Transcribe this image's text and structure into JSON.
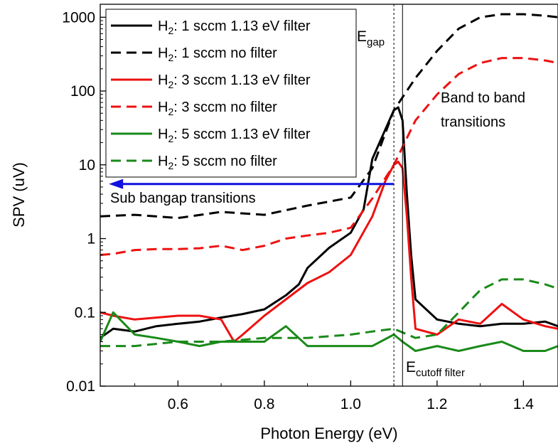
{
  "chart_data": {
    "type": "line",
    "title": "",
    "xlabel": "Photon Energy (eV)",
    "ylabel": "SPV (uV)",
    "xlim": [
      0.42,
      1.48
    ],
    "ylim": [
      0.01,
      1500
    ],
    "yscale": "log",
    "grid": false,
    "legend_position": "top-left",
    "x_ticks": [
      0.6,
      0.8,
      1.0,
      1.2,
      1.4
    ],
    "x_tick_labels": [
      "0.6",
      "0.8",
      "1.0",
      "1.2",
      "1.4"
    ],
    "y_ticks": [
      0.01,
      0.1,
      1,
      10,
      100,
      1000
    ],
    "y_tick_labels": [
      "0.01",
      "0.1",
      "1",
      "10",
      "100",
      "1000"
    ],
    "series": [
      {
        "name": "H2: 1 sccm 1.13 eV filter",
        "legend_main": "H",
        "legend_sub": "2",
        "legend_rest": ": 1 sccm 1.13 eV filter",
        "color": "#000000",
        "dash": "solid",
        "x": [
          0.42,
          0.45,
          0.5,
          0.55,
          0.6,
          0.65,
          0.7,
          0.75,
          0.8,
          0.85,
          0.88,
          0.9,
          0.95,
          1.0,
          1.03,
          1.05,
          1.08,
          1.1,
          1.11,
          1.12,
          1.13,
          1.14,
          1.15,
          1.2,
          1.25,
          1.3,
          1.35,
          1.4,
          1.45,
          1.48
        ],
        "y": [
          0.045,
          0.06,
          0.055,
          0.065,
          0.07,
          0.075,
          0.085,
          0.095,
          0.11,
          0.17,
          0.24,
          0.4,
          0.75,
          1.2,
          2.5,
          12,
          30,
          55,
          60,
          40,
          4,
          0.6,
          0.15,
          0.08,
          0.07,
          0.065,
          0.07,
          0.07,
          0.075,
          0.065
        ]
      },
      {
        "name": "H2: 1 sccm no filter",
        "legend_main": "H",
        "legend_sub": "2",
        "legend_rest": ": 1 sccm no filter",
        "color": "#000000",
        "dash": "dashed",
        "x": [
          0.42,
          0.5,
          0.6,
          0.7,
          0.8,
          0.9,
          1.0,
          1.05,
          1.1,
          1.15,
          1.2,
          1.25,
          1.3,
          1.35,
          1.4,
          1.45,
          1.48
        ],
        "y": [
          2.0,
          2.1,
          1.9,
          2.3,
          2.1,
          2.8,
          3.6,
          9,
          55,
          150,
          350,
          700,
          1000,
          1100,
          1100,
          1050,
          1000
        ]
      },
      {
        "name": "H2: 3 sccm 1.13 eV filter",
        "legend_main": "H",
        "legend_sub": "2",
        "legend_rest": ": 3 sccm 1.13 eV filter",
        "color": "#ee1111",
        "dash": "solid",
        "x": [
          0.42,
          0.45,
          0.5,
          0.55,
          0.6,
          0.65,
          0.7,
          0.73,
          0.75,
          0.8,
          0.85,
          0.9,
          0.95,
          1.0,
          1.05,
          1.08,
          1.1,
          1.11,
          1.12,
          1.13,
          1.14,
          1.15,
          1.2,
          1.25,
          1.3,
          1.35,
          1.4,
          1.45,
          1.48
        ],
        "y": [
          0.1,
          0.09,
          0.08,
          0.085,
          0.09,
          0.09,
          0.08,
          0.04,
          0.05,
          0.09,
          0.15,
          0.25,
          0.35,
          0.6,
          2.0,
          6,
          10,
          11,
          9,
          2,
          0.3,
          0.06,
          0.05,
          0.08,
          0.07,
          0.13,
          0.08,
          0.065,
          0.06
        ]
      },
      {
        "name": "H2: 3 sccm no filter",
        "legend_main": "H",
        "legend_sub": "2",
        "legend_rest": ": 3 sccm no filter",
        "color": "#ee1111",
        "dash": "dashed",
        "x": [
          0.42,
          0.45,
          0.5,
          0.55,
          0.6,
          0.65,
          0.7,
          0.75,
          0.8,
          0.85,
          0.9,
          0.95,
          1.0,
          1.05,
          1.1,
          1.15,
          1.2,
          1.25,
          1.3,
          1.35,
          1.4,
          1.45,
          1.48
        ],
        "y": [
          0.6,
          0.62,
          0.7,
          0.72,
          0.72,
          0.74,
          0.8,
          0.7,
          0.8,
          1.0,
          1.1,
          1.2,
          1.4,
          3.5,
          10,
          40,
          90,
          170,
          240,
          280,
          280,
          260,
          240
        ]
      },
      {
        "name": "H2: 5 sccm 1.13 eV filter",
        "legend_main": "H",
        "legend_sub": "2",
        "legend_rest": ": 5 sccm 1.13 eV filter",
        "color": "#1a8a1a",
        "dash": "solid",
        "x": [
          0.42,
          0.45,
          0.5,
          0.55,
          0.6,
          0.65,
          0.7,
          0.75,
          0.8,
          0.85,
          0.9,
          0.95,
          1.0,
          1.05,
          1.1,
          1.12,
          1.15,
          1.2,
          1.25,
          1.3,
          1.35,
          1.4,
          1.45,
          1.48
        ],
        "y": [
          0.04,
          0.1,
          0.05,
          0.045,
          0.04,
          0.035,
          0.04,
          0.04,
          0.04,
          0.065,
          0.035,
          0.035,
          0.035,
          0.035,
          0.05,
          0.04,
          0.03,
          0.035,
          0.03,
          0.035,
          0.04,
          0.03,
          0.03,
          0.035
        ]
      },
      {
        "name": "H2: 5 sccm no filter",
        "legend_main": "H",
        "legend_sub": "2",
        "legend_rest": ": 5 sccm no filter",
        "color": "#1a8a1a",
        "dash": "dashed",
        "x": [
          0.42,
          0.5,
          0.6,
          0.7,
          0.8,
          0.9,
          1.0,
          1.05,
          1.1,
          1.15,
          1.2,
          1.25,
          1.3,
          1.35,
          1.4,
          1.45,
          1.48
        ],
        "y": [
          0.035,
          0.035,
          0.04,
          0.04,
          0.045,
          0.045,
          0.05,
          0.055,
          0.06,
          0.045,
          0.05,
          0.1,
          0.2,
          0.28,
          0.28,
          0.24,
          0.21
        ]
      }
    ],
    "vlines": [
      {
        "x": 1.1,
        "style": "dotted",
        "color": "#000000"
      },
      {
        "x": 1.12,
        "style": "solid",
        "color": "#000000"
      }
    ],
    "annotations": {
      "egap": {
        "main": "E",
        "sub": "gap"
      },
      "ecutoff": {
        "main": "E",
        "sub": "cutoff filter"
      },
      "band_line1": "Band to band",
      "band_line2": "transitions",
      "subgap": "Sub bangap transitions"
    },
    "arrow": {
      "from_x": 1.1,
      "to_x": 0.44,
      "y": 5.5,
      "color": "#1010e0"
    }
  }
}
